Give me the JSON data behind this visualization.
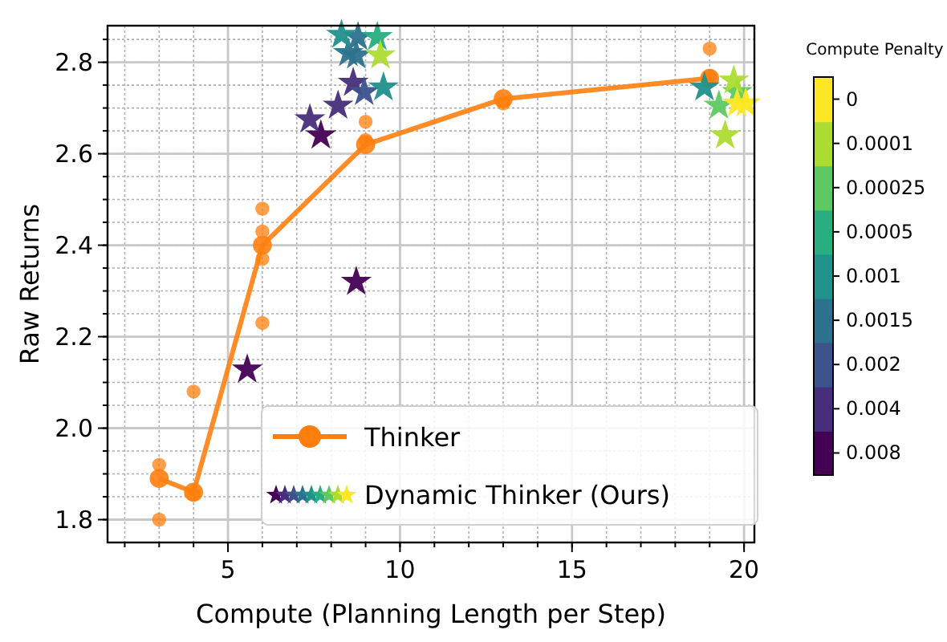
{
  "chart_data": {
    "type": "scatter",
    "xlabel": "Compute (Planning Length per Step)",
    "ylabel": "Raw Returns",
    "legend_title": "Compute Penalty",
    "annotations": [
      "Dynamic Thinker (Ours)"
    ],
    "xlim": [
      1.5,
      20.3
    ],
    "ylim": [
      1.75,
      2.88
    ],
    "xticks": [
      5,
      10,
      15,
      20
    ],
    "yticks": [
      1.8,
      {
        "value": 2,
        "label": "2.0"
      },
      2.2,
      2.4,
      2.6,
      2.8
    ],
    "grid": true,
    "legend": "right",
    "series": [
      {
        "name": "Thinker",
        "type": "line",
        "marker": "circle",
        "color": "#ff7f0e",
        "x": [
          3,
          4,
          6,
          9,
          13,
          19
        ],
        "values": [
          1.89,
          1.86,
          2.4,
          2.62,
          2.72,
          2.765
        ]
      },
      {
        "marker": "circle",
        "color": "#ff7f0e",
        "x": [
          3,
          3,
          4,
          4,
          6,
          6,
          6,
          6,
          9,
          9,
          13,
          19,
          19
        ],
        "values": [
          1.92,
          1.8,
          2.08,
          1.855,
          2.48,
          2.43,
          2.37,
          2.23,
          2.67,
          2.63,
          2.71,
          2.83,
          2.77
        ]
      },
      {
        "name": "0.008",
        "marker": "star",
        "color": "#440154",
        "x": [
          7.7,
          8.73,
          5.56
        ],
        "values": [
          2.64,
          2.32,
          2.128
        ]
      },
      {
        "name": "0.004",
        "marker": "star",
        "color": "#472d7b",
        "x": [
          8.64,
          8.2,
          7.38
        ],
        "values": [
          2.755,
          2.705,
          2.675
        ]
      },
      {
        "name": "0.002",
        "marker": "star",
        "color": "#3b528b",
        "x": [
          8.96
        ],
        "values": [
          2.735
        ]
      },
      {
        "name": "0.0015",
        "marker": "star",
        "color": "#2c728e",
        "x": [
          8.78,
          8.5,
          8.73
        ],
        "values": [
          2.855,
          2.82,
          2.815
        ]
      },
      {
        "name": "0.001",
        "marker": "star",
        "color": "#21918c",
        "x": [
          8.3,
          9.52,
          18.85
        ],
        "values": [
          2.86,
          2.745,
          2.745
        ]
      },
      {
        "name": "0.0005",
        "marker": "star",
        "color": "#28ae80",
        "x": [
          9.34
        ],
        "values": [
          2.855
        ]
      },
      {
        "name": "0.00025",
        "marker": "star",
        "color": "#5ec962",
        "x": [
          19.8,
          19.27
        ],
        "values": [
          2.735,
          2.705
        ]
      },
      {
        "name": "0.0001",
        "marker": "star",
        "color": "#addc30",
        "x": [
          9.43,
          19.7,
          19.45
        ],
        "values": [
          2.815,
          2.76,
          2.64
        ]
      },
      {
        "name": "0",
        "marker": "star",
        "color": "#fde725",
        "x": [
          19.8,
          20.05
        ],
        "values": [
          2.71,
          2.71
        ]
      }
    ]
  }
}
